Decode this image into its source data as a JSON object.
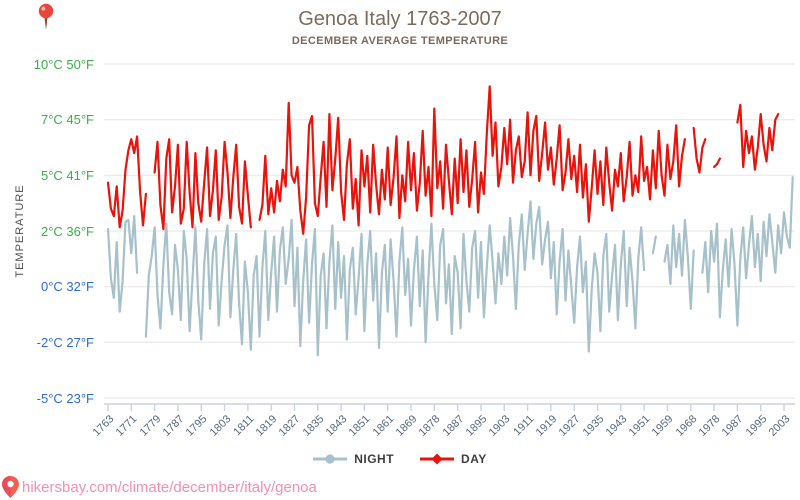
{
  "title": "Genoa Italy 1763-2007",
  "subtitle": "DECEMBER AVERAGE TEMPERATURE",
  "y_axis": {
    "title": "TEMPERATURE",
    "ticks": [
      {
        "temp": 10,
        "label": "10°C 50°F",
        "color": "#3cae47"
      },
      {
        "temp": 7,
        "label": "7°C 45°F",
        "color": "#3cae47"
      },
      {
        "temp": 5,
        "label": "5°C 41°F",
        "color": "#3cae47"
      },
      {
        "temp": 2,
        "label": "2°C 36°F",
        "color": "#3cae47"
      },
      {
        "temp": 0,
        "label": "0°C 32°F",
        "color": "#2b6be0"
      },
      {
        "temp": -2,
        "label": "-2°C 27°F",
        "color": "#2b6be0"
      },
      {
        "temp": -5,
        "label": "-5°C 23°F",
        "color": "#2b6be0"
      }
    ]
  },
  "legend": {
    "night_label": "NIGHT",
    "day_label": "DAY"
  },
  "footer": {
    "url": "hikersbay.com/climate/december/italy/genoa"
  },
  "chart_data": {
    "type": "line",
    "title": "Genoa Italy 1763-2007",
    "subtitle": "DECEMBER AVERAGE TEMPERATURE",
    "ylabel": "TEMPERATURE",
    "unit": "°C",
    "ylim": [
      -5,
      10
    ],
    "grid": true,
    "legend_position": "bottom",
    "x_tick_labels": [
      "1763",
      "1771",
      "1779",
      "1787",
      "1795",
      "1803",
      "1811",
      "1819",
      "1827",
      "1835",
      "1843",
      "1851",
      "1861",
      "1869",
      "1878",
      "1887",
      "1895",
      "1903",
      "1911",
      "1919",
      "1927",
      "1935",
      "1943",
      "1951",
      "1959",
      "1968",
      "1978",
      "1987",
      "1995",
      "2003"
    ],
    "x_ticks_every_n_points": 8,
    "series": [
      {
        "name": "NIGHT",
        "color": "#a7c1ca",
        "marker": "circle",
        "values": [
          2.1,
          0.3,
          -0.4,
          1.6,
          -0.9,
          0.2,
          2.5,
          2.6,
          1.2,
          2.8,
          0.5,
          null,
          null,
          -1.8,
          0.4,
          1.1,
          2.2,
          -0.3,
          -1.5,
          0.8,
          2.4,
          -0.2,
          -1.0,
          1.5,
          0.6,
          -1.2,
          2.0,
          1.0,
          -1.6,
          0.3,
          2.2,
          -0.5,
          -1.9,
          0.8,
          2.1,
          -0.8,
          1.2,
          1.8,
          -1.4,
          0.2,
          1.5,
          2.3,
          -1.1,
          0.6,
          1.9,
          -0.6,
          -2.1,
          0.9,
          -0.2,
          -2.4,
          0.4,
          1.1,
          -1.8,
          0.7,
          2.0,
          -1.2,
          0.5,
          1.8,
          -0.9,
          1.3,
          2.2,
          0.1,
          1.0,
          2.6,
          -0.7,
          1.4,
          -2.2,
          0.2,
          1.7,
          -1.3,
          0.8,
          2.1,
          -2.7,
          0.4,
          1.2,
          -1.5,
          0.9,
          2.3,
          -0.8,
          1.6,
          -0.4,
          1.1,
          -1.9,
          0.6,
          1.4,
          -1.0,
          0.3,
          1.9,
          -1.6,
          0.8,
          2.0,
          -0.5,
          1.2,
          -2.3,
          0.5,
          1.5,
          -0.9,
          1.7,
          0.2,
          -1.8,
          0.9,
          2.2,
          -0.3,
          1.0,
          -1.4,
          0.6,
          1.8,
          -0.7,
          1.3,
          -2.0,
          0.4,
          2.4,
          0.1,
          -1.2,
          1.5,
          2.1,
          -0.6,
          0.8,
          -1.7,
          1.1,
          0.5,
          -1.5,
          1.9,
          0.2,
          -0.9,
          1.4,
          2.0,
          -0.4,
          1.6,
          -1.1,
          0.7,
          2.3,
          0.9,
          -0.6,
          1.2,
          0.1,
          1.8,
          0.4,
          2.7,
          1.1,
          -0.8,
          1.5,
          2.9,
          0.6,
          1.9,
          3.6,
          1.0,
          2.4,
          3.3,
          0.8,
          1.7,
          2.5,
          0.3,
          1.6,
          -1.0,
          0.9,
          2.1,
          -0.5,
          1.3,
          0.0,
          -1.3,
          0.7,
          1.8,
          -0.2,
          0.9,
          -2.5,
          -0.1,
          1.2,
          0.5,
          -1.6,
          1.1,
          1.9,
          -0.9,
          0.4,
          1.5,
          -1.2,
          0.8,
          2.0,
          -0.7,
          1.4,
          0.2,
          -1.5,
          1.0,
          2.2,
          0.6,
          null,
          null,
          1.2,
          1.8,
          null,
          null,
          0.9,
          1.5,
          0.1,
          2.3,
          0.7,
          1.9,
          0.4,
          2.6,
          1.1,
          -0.8,
          1.3,
          null,
          null,
          0.5,
          1.6,
          -0.2,
          2.0,
          0.9,
          2.4,
          -1.1,
          0.6,
          1.7,
          0.0,
          2.1,
          0.8,
          -1.4,
          1.0,
          2.2,
          0.3,
          1.5,
          2.8,
          0.7,
          1.9,
          0.2,
          2.5,
          1.1,
          2.9,
          1.6,
          0.5,
          2.3,
          1.2,
          3.0,
          1.8,
          1.4,
          4.9,
          null,
          null
        ]
      },
      {
        "name": "DAY",
        "color": "#e8130a",
        "marker": "diamond",
        "values": [
          4.6,
          3.2,
          2.8,
          4.4,
          2.2,
          3.1,
          5.2,
          5.9,
          6.3,
          5.8,
          6.4,
          4.1,
          2.3,
          4.0,
          null,
          null,
          5.1,
          6.2,
          3.4,
          2.1,
          5.6,
          6.3,
          3.0,
          4.4,
          6.1,
          2.4,
          3.2,
          6.2,
          4.1,
          2.2,
          5.8,
          3.5,
          2.5,
          4.6,
          6.0,
          2.8,
          4.2,
          5.9,
          2.6,
          3.8,
          6.2,
          5.1,
          2.7,
          4.9,
          6.1,
          3.3,
          2.4,
          5.5,
          3.9,
          2.2,
          null,
          null,
          2.6,
          3.4,
          5.7,
          2.9,
          4.3,
          3.0,
          4.7,
          3.6,
          5.2,
          4.4,
          7.9,
          5.0,
          4.6,
          5.3,
          3.1,
          1.9,
          3.8,
          6.8,
          7.2,
          3.5,
          2.8,
          4.9,
          6.2,
          3.3,
          7.3,
          4.2,
          5.6,
          7.1,
          4.1,
          2.6,
          5.4,
          6.3,
          3.2,
          4.8,
          2.3,
          5.9,
          4.4,
          5.7,
          3.0,
          6.1,
          4.5,
          2.9,
          5.2,
          3.7,
          6.0,
          3.4,
          4.9,
          6.4,
          2.7,
          5.0,
          3.6,
          6.2,
          4.2,
          5.8,
          3.1,
          4.6,
          6.6,
          3.9,
          5.3,
          2.8,
          7.6,
          4.3,
          5.5,
          3.2,
          6.1,
          4.7,
          2.9,
          5.6,
          3.5,
          6.3,
          4.1,
          5.9,
          3.3,
          4.8,
          6.2,
          3.0,
          5.1,
          4.0,
          6.5,
          8.8,
          5.7,
          6.9,
          4.4,
          5.3,
          6.7,
          5.4,
          7.0,
          4.6,
          5.9,
          6.4,
          4.9,
          5.5,
          7.4,
          5.0,
          6.6,
          7.2,
          4.7,
          5.8,
          6.9,
          5.2,
          6.0,
          4.5,
          5.6,
          6.8,
          4.2,
          5.1,
          6.3,
          4.8,
          5.7,
          4.1,
          6.1,
          3.8,
          5.4,
          2.5,
          4.3,
          5.9,
          4.0,
          5.5,
          3.4,
          6.0,
          4.6,
          3.1,
          5.2,
          4.4,
          5.8,
          3.6,
          4.9,
          6.2,
          3.9,
          5.0,
          4.1,
          6.4,
          4.7,
          5.3,
          3.7,
          5.9,
          4.3,
          6.6,
          5.0,
          3.9,
          6.1,
          4.8,
          5.5,
          6.8,
          4.4,
          5.7,
          6.3,
          null,
          null,
          6.7,
          5.6,
          5.1,
          6.0,
          6.3,
          null,
          null,
          5.3,
          5.4,
          5.6,
          null,
          null,
          null,
          null,
          null,
          6.9,
          7.8,
          5.3,
          6.6,
          5.8,
          6.4,
          5.2,
          6.0,
          7.3,
          6.1,
          5.5,
          6.7,
          5.9,
          7.0,
          7.3,
          null,
          null,
          null,
          null,
          null,
          null,
          null
        ]
      }
    ]
  }
}
